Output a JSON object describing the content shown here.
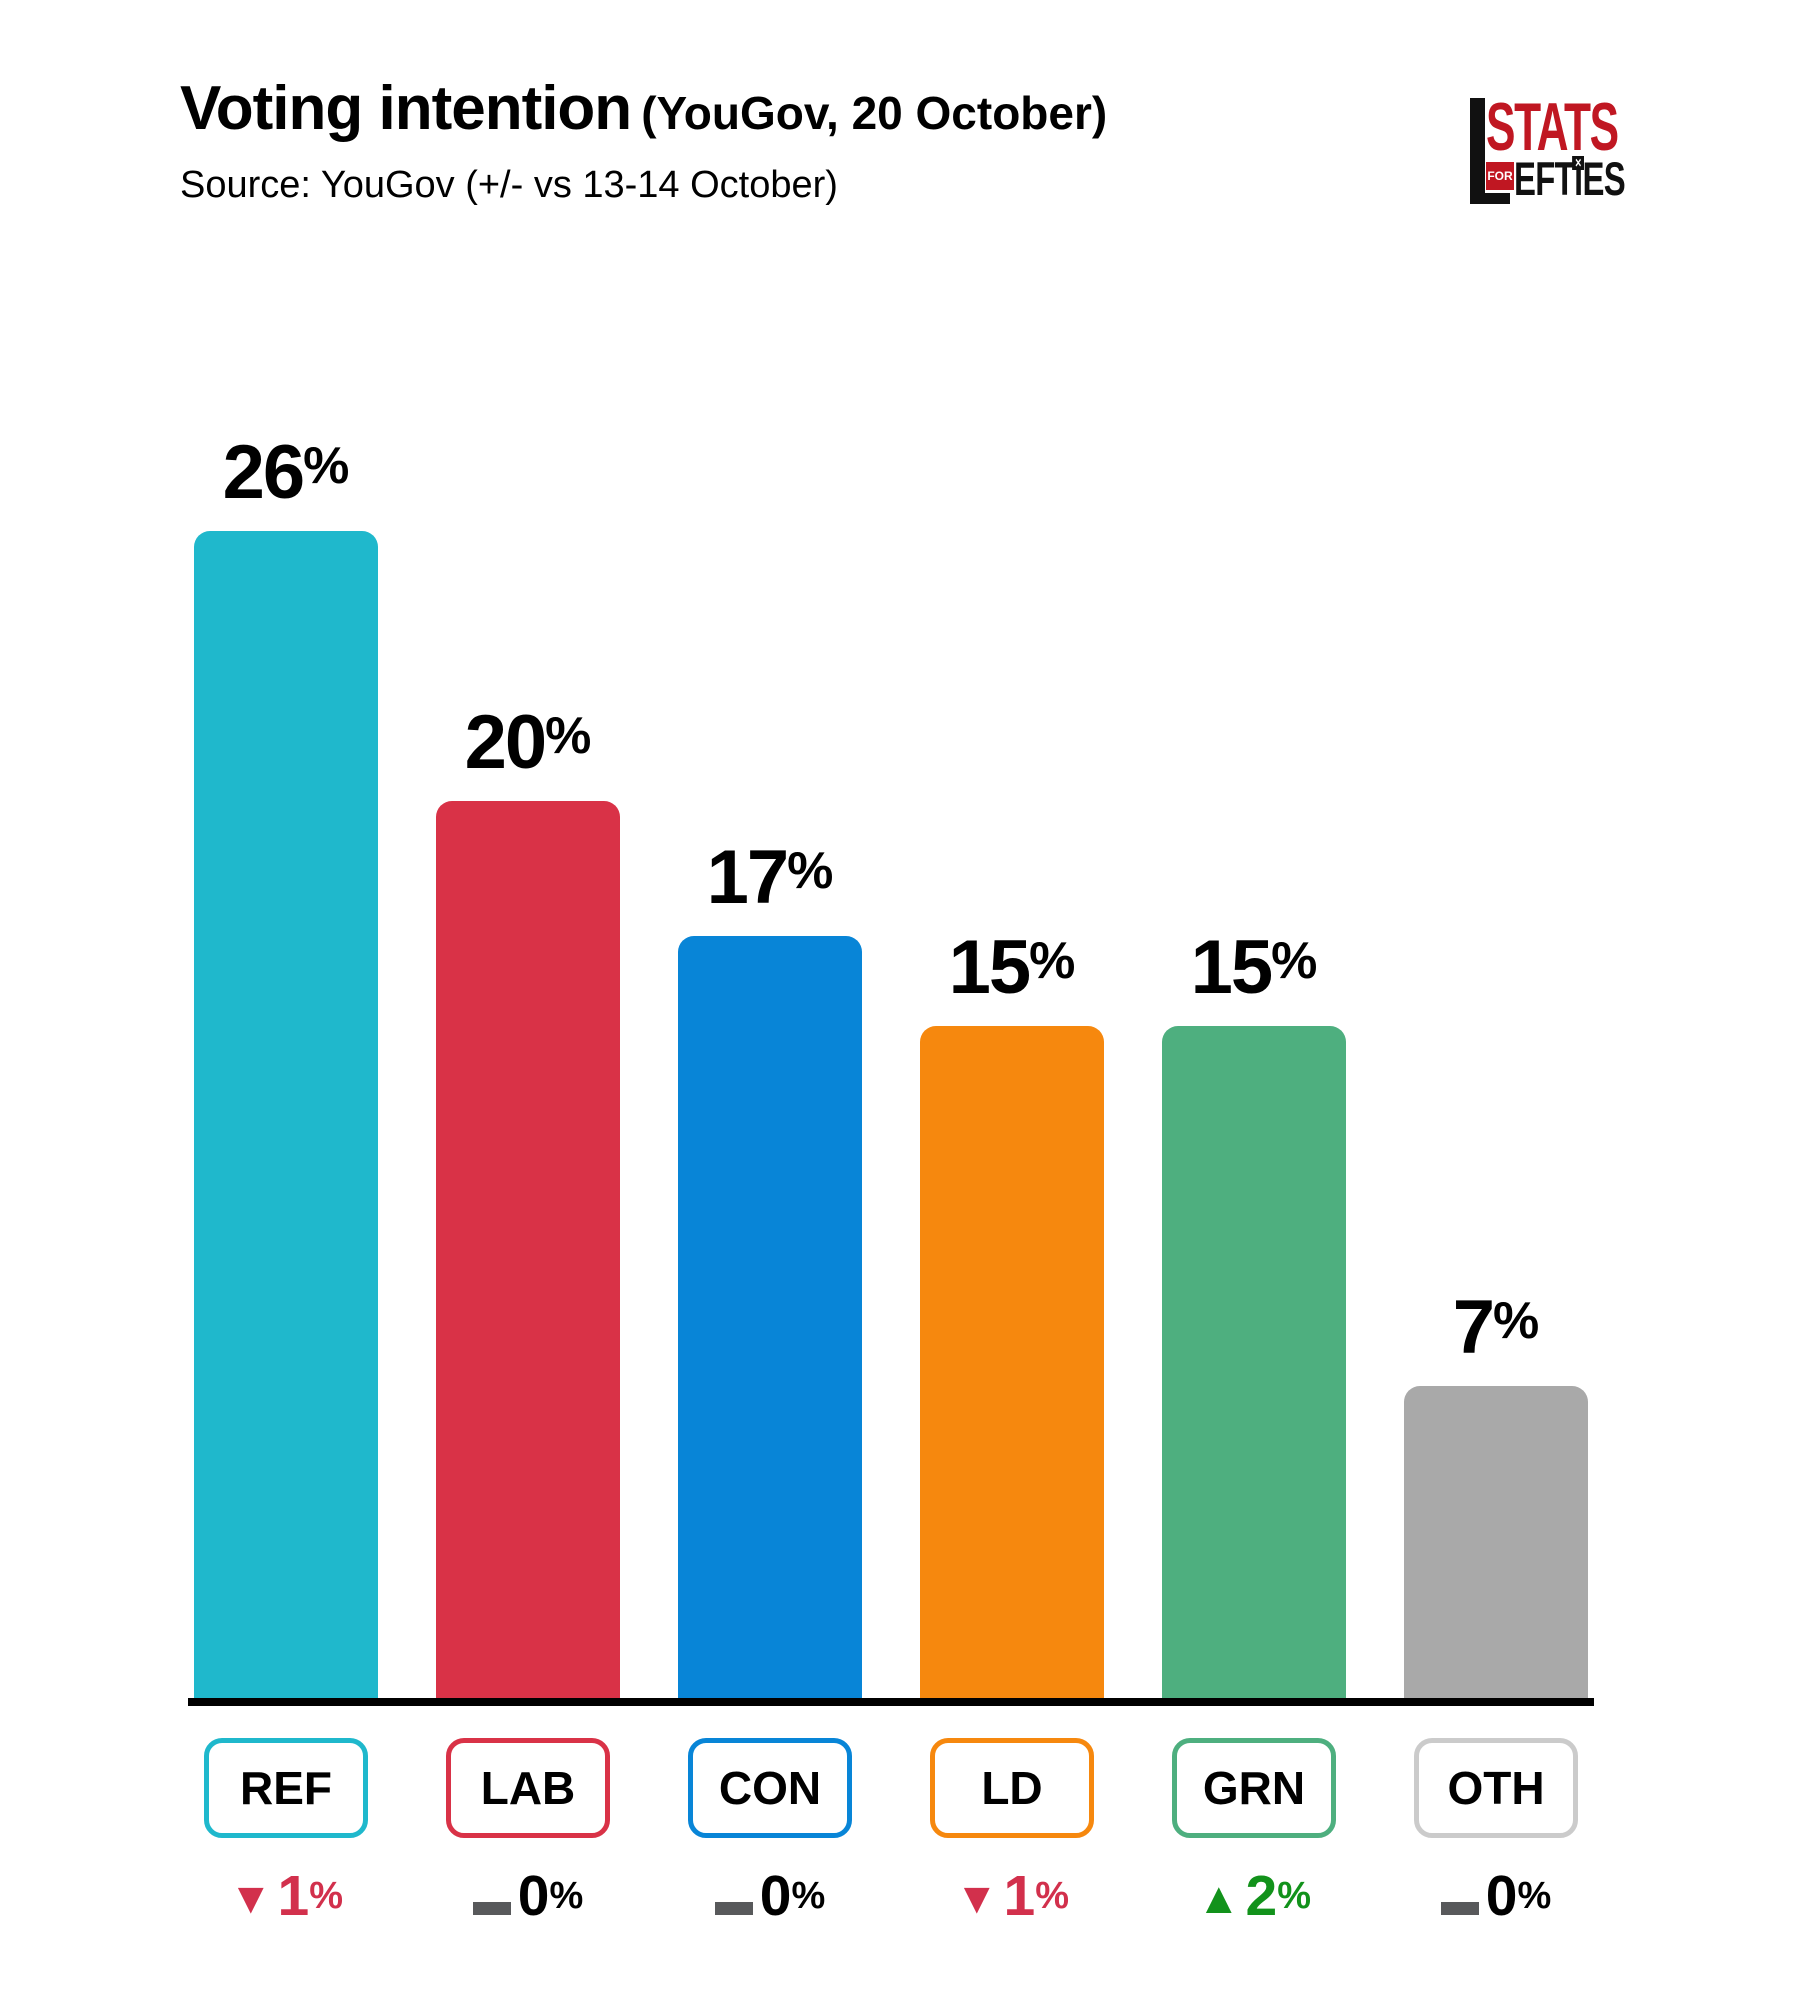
{
  "header": {
    "title": "Voting intention",
    "title_suffix": "(YouGov, 20 October)",
    "source": "Source: YouGov (+/- vs 13-14 October)"
  },
  "logo": {
    "stats": "STATS",
    "for": "FOR",
    "efties_pre": "EFT",
    "efties_i": "ı",
    "ballot_x": "✕",
    "efties_post": "ES"
  },
  "colors": {
    "axis": "#000000",
    "down_change": "#d2304c",
    "up_change": "#12921b",
    "no_change_dash": "#58595b",
    "no_change_text": "#000000",
    "logo_red": "#c01722",
    "logo_black": "#111111"
  },
  "chart_data": {
    "type": "bar",
    "title": "Voting intention (YouGov, 20 October)",
    "subtitle": "Source: YouGov (+/- vs 13-14 October)",
    "unit": "%",
    "ylim": [
      0,
      28
    ],
    "grid": false,
    "categories": [
      "REF",
      "LAB",
      "CON",
      "LD",
      "GRN",
      "OTH"
    ],
    "values": [
      26,
      20,
      17,
      15,
      15,
      7
    ],
    "changes_vs_previous": [
      -1,
      0,
      0,
      -1,
      2,
      0
    ],
    "parties": [
      {
        "label": "REF",
        "value": 26,
        "color": "#1fb8cc",
        "box_border": "#1fb8cc",
        "change": {
          "dir": "down",
          "text": "1",
          "color": "#d2304c"
        }
      },
      {
        "label": "LAB",
        "value": 20,
        "color": "#d93247",
        "box_border": "#d93247",
        "change": {
          "dir": "none",
          "text": "0",
          "color": "#000000"
        }
      },
      {
        "label": "CON",
        "value": 17,
        "color": "#0885d7",
        "box_border": "#0885d7",
        "change": {
          "dir": "none",
          "text": "0",
          "color": "#000000"
        }
      },
      {
        "label": "LD",
        "value": 15,
        "color": "#f6880e",
        "box_border": "#f6880e",
        "change": {
          "dir": "down",
          "text": "1",
          "color": "#d2304c"
        }
      },
      {
        "label": "GRN",
        "value": 15,
        "color": "#4eaf7f",
        "box_border": "#4eaf7f",
        "change": {
          "dir": "up",
          "text": "2",
          "color": "#12921b"
        }
      },
      {
        "label": "OTH",
        "value": 7,
        "color": "#a9a9a9",
        "box_border": "#cbcbcb",
        "change": {
          "dir": "none",
          "text": "0",
          "color": "#000000"
        }
      }
    ]
  }
}
